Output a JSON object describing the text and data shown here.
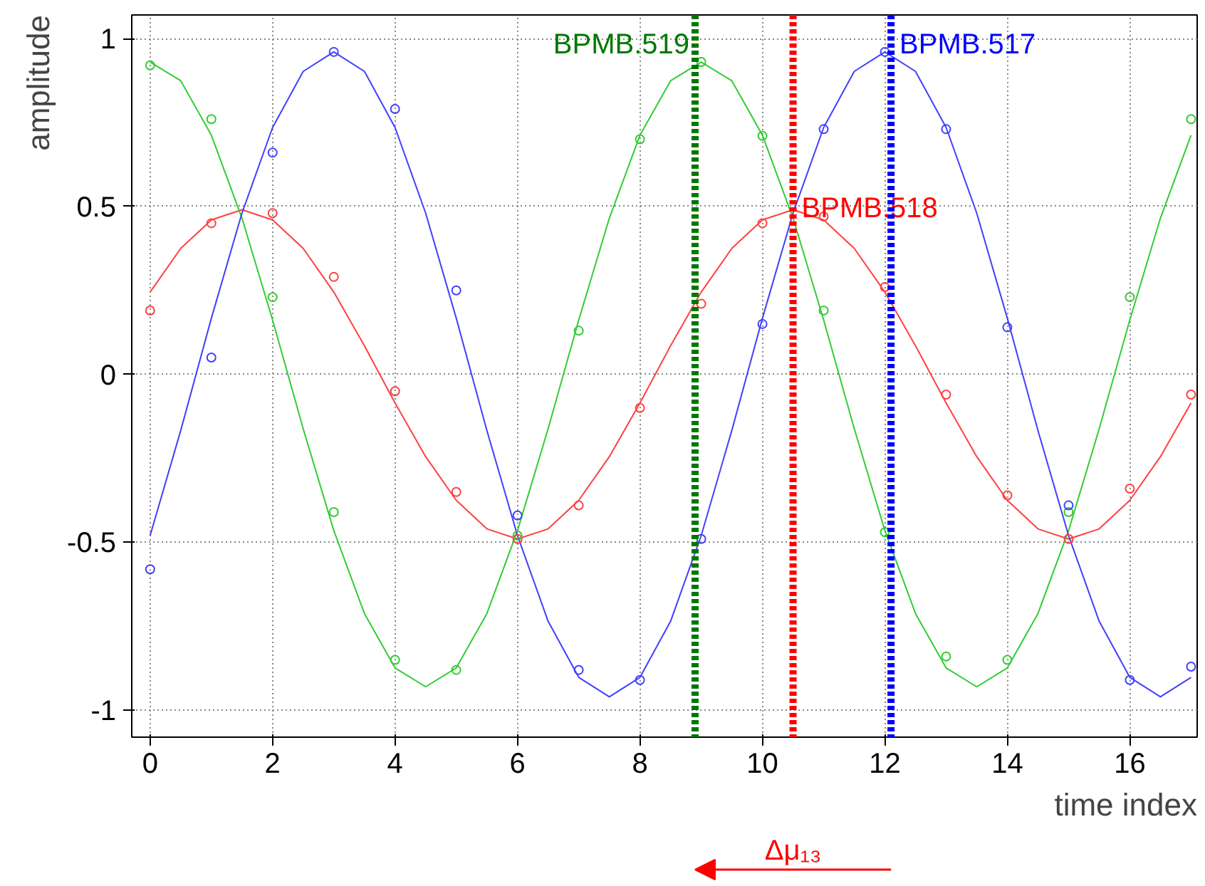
{
  "chart_data": {
    "type": "line",
    "xlabel": "time index",
    "ylabel": "amplitude",
    "xlim": [
      -0.3,
      17.1
    ],
    "ylim": [
      -1.08,
      1.07
    ],
    "xticks": [
      0,
      2,
      4,
      6,
      8,
      10,
      12,
      14,
      16
    ],
    "yticks": [
      -1,
      -0.5,
      0,
      0.5,
      1
    ],
    "grid": true,
    "line_style": "solid",
    "series": [
      {
        "color": "#ff4040",
        "x": [
          0,
          0.5,
          1,
          1.5,
          2,
          2.5,
          3,
          3.5,
          4,
          4.5,
          5,
          5.5,
          6,
          6.5,
          7,
          7.5,
          8,
          8.5,
          9,
          9.5,
          10,
          10.5,
          11,
          11.5,
          12,
          12.5,
          13,
          13.5,
          14,
          14.5,
          15,
          15.5,
          16,
          16.5,
          17
        ],
        "values": [
          0.245,
          0.375,
          0.46,
          0.49,
          0.46,
          0.375,
          0.245,
          0.085,
          -0.085,
          -0.245,
          -0.375,
          -0.46,
          -0.49,
          -0.46,
          -0.375,
          -0.245,
          -0.085,
          0.085,
          0.245,
          0.375,
          0.46,
          0.49,
          0.46,
          0.375,
          0.245,
          0.085,
          -0.085,
          -0.245,
          -0.375,
          -0.46,
          -0.49,
          -0.46,
          -0.375,
          -0.245,
          -0.085
        ]
      },
      {
        "color": "#33cc33",
        "x": [
          0,
          0.5,
          1,
          1.5,
          2,
          2.5,
          3,
          3.5,
          4,
          4.5,
          5,
          5.5,
          6,
          6.5,
          7,
          7.5,
          8,
          8.5,
          9,
          9.5,
          10,
          10.5,
          11,
          11.5,
          12,
          12.5,
          13,
          13.5,
          14,
          14.5,
          15,
          15.5,
          16,
          16.5,
          17
        ],
        "values": [
          0.93,
          0.874,
          0.712,
          0.465,
          0.162,
          -0.162,
          -0.465,
          -0.712,
          -0.874,
          -0.93,
          -0.874,
          -0.712,
          -0.465,
          -0.162,
          0.162,
          0.465,
          0.712,
          0.874,
          0.93,
          0.874,
          0.712,
          0.465,
          0.162,
          -0.162,
          -0.465,
          -0.712,
          -0.874,
          -0.93,
          -0.874,
          -0.712,
          -0.465,
          -0.162,
          0.162,
          0.465,
          0.712
        ]
      },
      {
        "color": "#4040ff",
        "x": [
          0,
          0.5,
          1,
          1.5,
          2,
          2.5,
          3,
          3.5,
          4,
          4.5,
          5,
          5.5,
          6,
          6.5,
          7,
          7.5,
          8,
          8.5,
          9,
          9.5,
          10,
          10.5,
          11,
          11.5,
          12,
          12.5,
          13,
          13.5,
          14,
          14.5,
          15,
          15.5,
          16,
          16.5,
          17
        ],
        "values": [
          -0.48,
          -0.167,
          0.167,
          0.48,
          0.735,
          0.902,
          0.96,
          0.902,
          0.735,
          0.48,
          0.167,
          -0.167,
          -0.48,
          -0.735,
          -0.902,
          -0.96,
          -0.902,
          -0.735,
          -0.48,
          -0.167,
          0.167,
          0.48,
          0.735,
          0.902,
          0.96,
          0.902,
          0.735,
          0.48,
          0.167,
          -0.167,
          -0.48,
          -0.735,
          -0.902,
          -0.96,
          -0.902
        ]
      },
      {
        "type": "scatter",
        "marker": "circle",
        "color": "#ff4040",
        "x": [
          0,
          1,
          2,
          3,
          4,
          5,
          6,
          7,
          8,
          9,
          10,
          11,
          12,
          13,
          14,
          15,
          16,
          17
        ],
        "values": [
          0.19,
          0.45,
          0.48,
          0.29,
          -0.05,
          -0.35,
          -0.49,
          -0.39,
          -0.1,
          0.21,
          0.45,
          0.47,
          0.26,
          -0.06,
          -0.36,
          -0.49,
          -0.34,
          -0.06
        ]
      },
      {
        "type": "scatter",
        "marker": "circle",
        "color": "#33cc33",
        "x": [
          0,
          1,
          2,
          3,
          4,
          5,
          6,
          7,
          8,
          9,
          10,
          11,
          12,
          13,
          14,
          15,
          16,
          17
        ],
        "values": [
          0.92,
          0.76,
          0.23,
          -0.41,
          -0.85,
          -0.88,
          -0.48,
          0.13,
          0.7,
          0.93,
          0.71,
          0.19,
          -0.47,
          -0.84,
          -0.85,
          -0.41,
          0.23,
          0.76
        ]
      },
      {
        "type": "scatter",
        "marker": "circle",
        "color": "#4040ff",
        "x": [
          0,
          1,
          2,
          3,
          4,
          5,
          6,
          7,
          8,
          9,
          10,
          11,
          12,
          13,
          14,
          15,
          16,
          17
        ],
        "values": [
          -0.58,
          0.05,
          0.66,
          0.96,
          0.79,
          0.25,
          -0.42,
          -0.88,
          -0.91,
          -0.49,
          0.15,
          0.73,
          0.96,
          0.73,
          0.14,
          -0.39,
          -0.91,
          -0.87
        ]
      }
    ],
    "ref_lines": [
      {
        "axis": "x",
        "value": 8.9,
        "label": "BPMB.519",
        "color": "#007700",
        "line_style": "dotted"
      },
      {
        "axis": "x",
        "value": 10.5,
        "label": "BPMB.518",
        "color": "#ff0000",
        "line_style": "dotted"
      },
      {
        "axis": "x",
        "value": 12.1,
        "label": "BPMB.517",
        "color": "#0000ff",
        "line_style": "dotted"
      }
    ],
    "annotations": [
      "Δμ₁₃"
    ]
  }
}
